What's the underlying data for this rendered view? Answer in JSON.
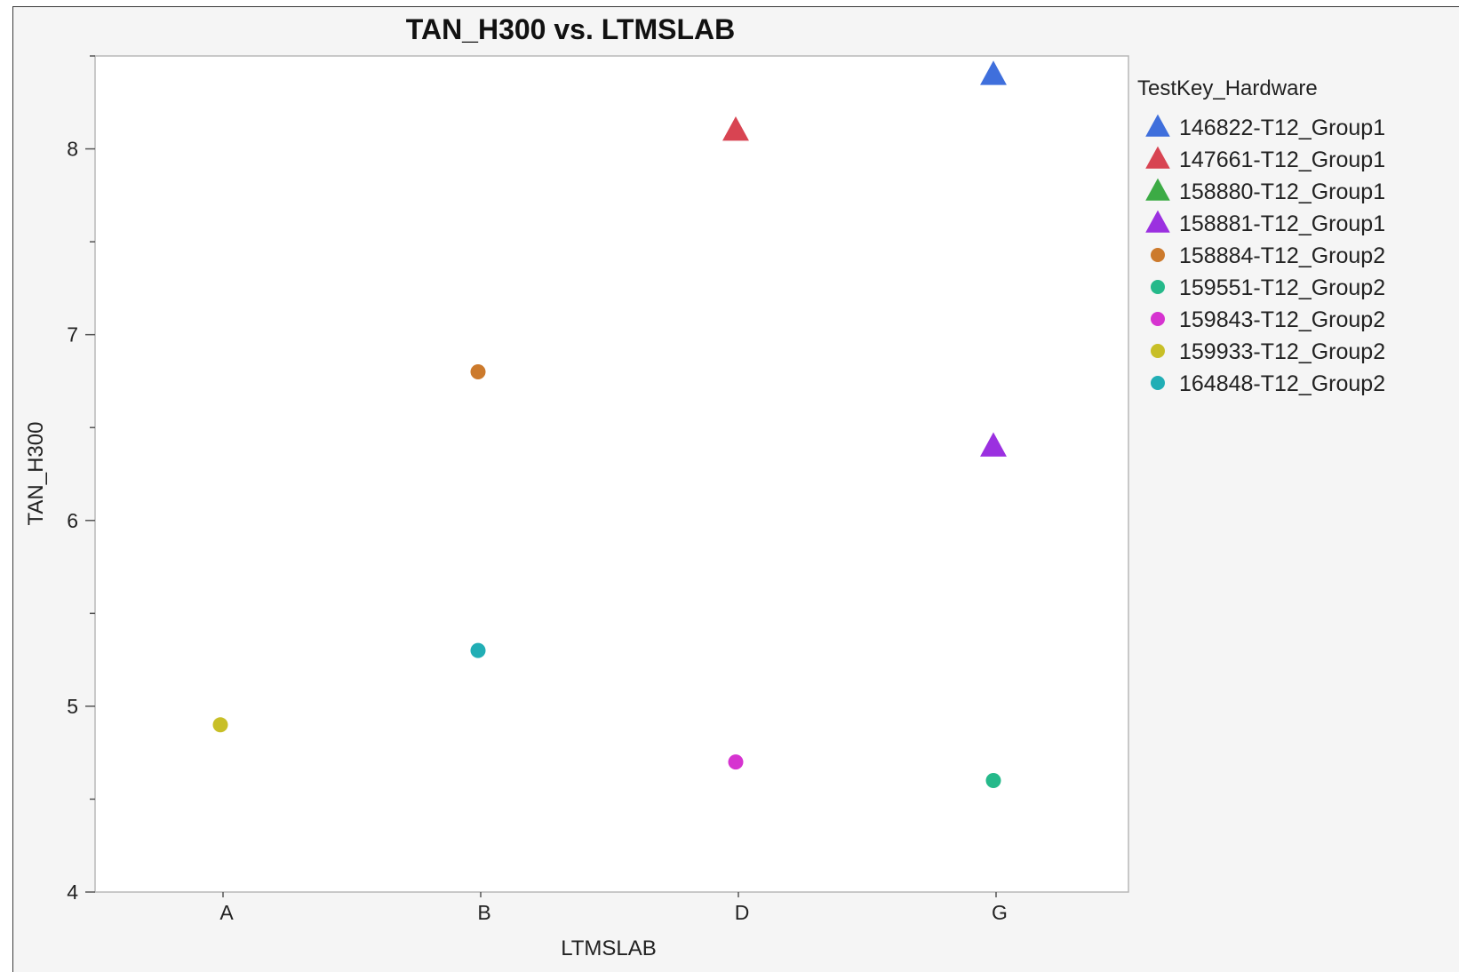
{
  "chart_data": {
    "type": "scatter",
    "title": "TAN_H300 vs. LTMSLAB",
    "xlabel": "LTMSLAB",
    "ylabel": "TAN_H300",
    "categories": [
      "A",
      "B",
      "D",
      "G"
    ],
    "ylim": [
      4,
      8.5
    ],
    "yticks": [
      4,
      5,
      6,
      7,
      8
    ],
    "grid": false,
    "legend": {
      "title": "TestKey_Hardware",
      "position": "right"
    },
    "series": [
      {
        "name": "146822-T12_Group1",
        "marker": "triangle",
        "color": "#3f6fdc",
        "points": [
          {
            "x": "G",
            "y": 8.4
          }
        ]
      },
      {
        "name": "147661-T12_Group1",
        "marker": "triangle",
        "color": "#d84452",
        "points": [
          {
            "x": "D",
            "y": 8.1
          }
        ]
      },
      {
        "name": "158880-T12_Group1",
        "marker": "triangle",
        "color": "#3cab45",
        "points": []
      },
      {
        "name": "158881-T12_Group1",
        "marker": "triangle",
        "color": "#9b30e0",
        "points": [
          {
            "x": "G",
            "y": 6.4
          }
        ]
      },
      {
        "name": "158884-T12_Group2",
        "marker": "circle",
        "color": "#cc7a2c",
        "points": [
          {
            "x": "B",
            "y": 6.8
          }
        ]
      },
      {
        "name": "159551-T12_Group2",
        "marker": "circle",
        "color": "#25b98a",
        "points": [
          {
            "x": "G",
            "y": 4.6
          }
        ]
      },
      {
        "name": "159843-T12_Group2",
        "marker": "circle",
        "color": "#d633d0",
        "points": [
          {
            "x": "D",
            "y": 4.7
          }
        ]
      },
      {
        "name": "159933-T12_Group2",
        "marker": "circle",
        "color": "#c8bf27",
        "points": [
          {
            "x": "A",
            "y": 4.9
          }
        ]
      },
      {
        "name": "164848-T12_Group2",
        "marker": "circle",
        "color": "#21aeb5",
        "points": [
          {
            "x": "B",
            "y": 5.3
          }
        ]
      }
    ]
  }
}
